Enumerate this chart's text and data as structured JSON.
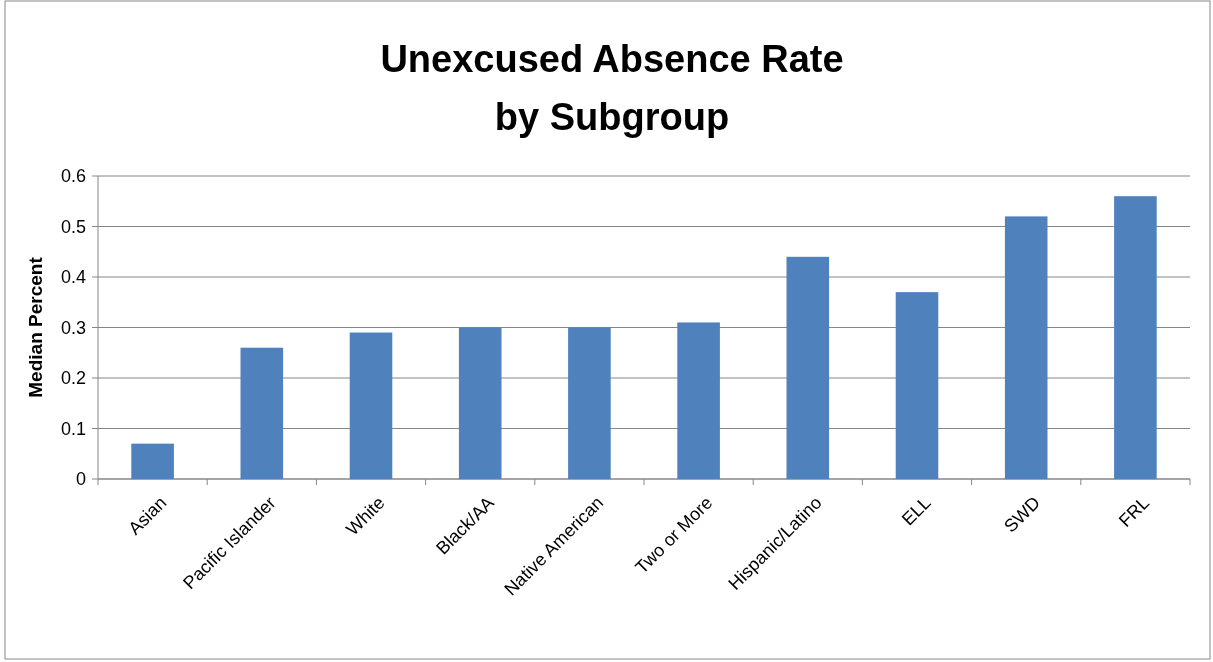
{
  "chart_data": {
    "type": "bar",
    "title": "Unexcused Absence Rate\nby Subgroup",
    "ylabel": "Median Percent",
    "categories": [
      "Asian",
      "Pacific Islander",
      "White",
      "Black/AA",
      "Native American",
      "Two or More",
      "Hispanic/Latino",
      "ELL",
      "SWD",
      "FRL"
    ],
    "values": [
      0.07,
      0.26,
      0.29,
      0.3,
      0.3,
      0.31,
      0.44,
      0.37,
      0.52,
      0.56
    ],
    "color": "#4f81bd",
    "ylim": [
      0,
      0.6
    ],
    "yticks": [
      0,
      0.1,
      0.2,
      0.3,
      0.4,
      0.5,
      0.6
    ],
    "grid": "y"
  }
}
